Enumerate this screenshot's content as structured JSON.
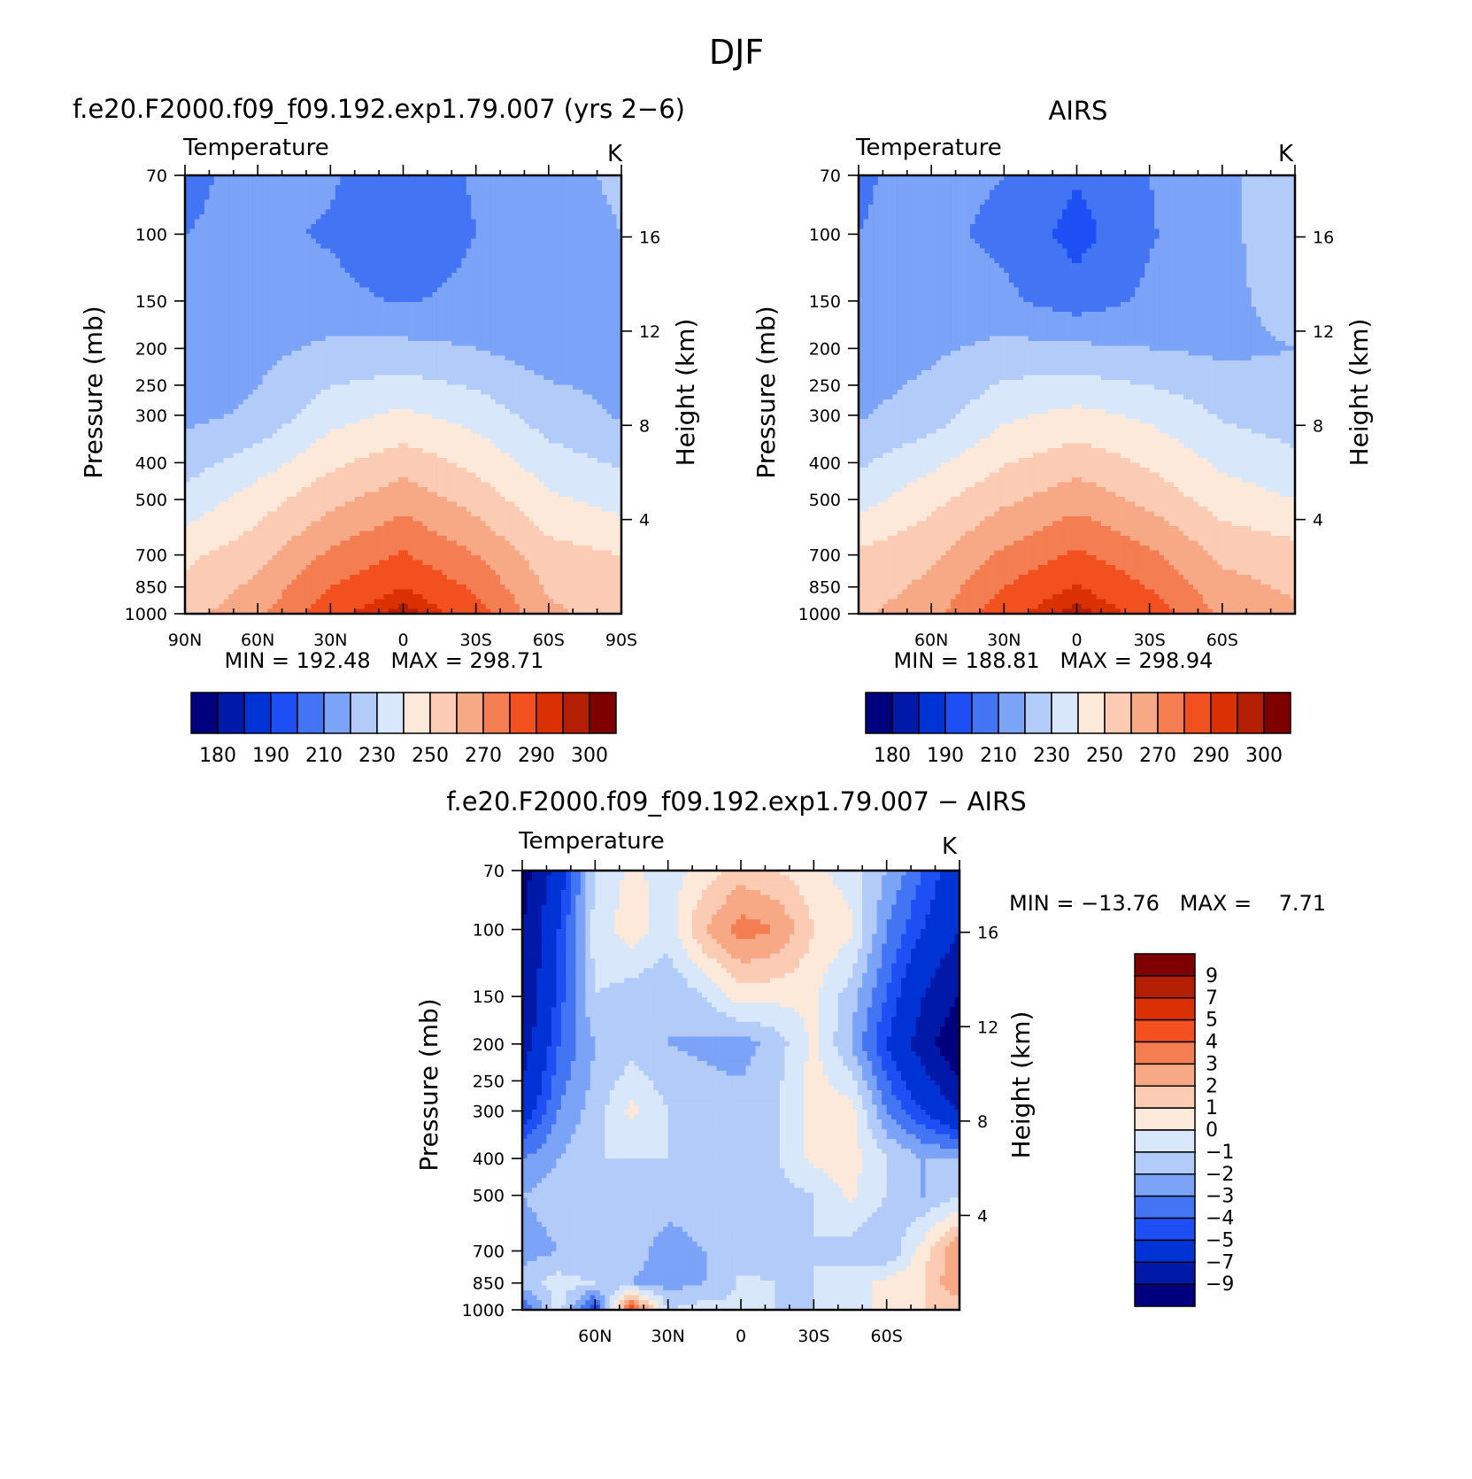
{
  "page": {
    "title": "DJF"
  },
  "palette": {
    "abs_colors": [
      "#00007f",
      "#0019a8",
      "#0033d6",
      "#1e4ff5",
      "#4274f4",
      "#7ba3f7",
      "#b3cbf8",
      "#d8e8fa",
      "#fde9da",
      "#fbcbb3",
      "#f7a884",
      "#f47d52",
      "#f2501f",
      "#db3004",
      "#b41e03",
      "#7f0000"
    ],
    "diff_colors": [
      "#00007f",
      "#0019a8",
      "#0033d6",
      "#1e4ff5",
      "#4274f4",
      "#7ba3f7",
      "#b3cbf8",
      "#d8e8fa",
      "#fde9da",
      "#fbcbb3",
      "#f7a884",
      "#f47d52",
      "#f2501f",
      "#db3004",
      "#b41e03",
      "#7f0000"
    ]
  },
  "panels": {
    "model": {
      "title": "f.e20.F2000.f09_f09.192.exp1.79.007 (yrs 2−6)",
      "left_string": "Temperature",
      "right_string": "K",
      "ylabel": "Pressure (mb)",
      "ylabel2": "Height (km)",
      "stats": "MIN = 192.48   MAX = 298.71"
    },
    "obs": {
      "title": "AIRS",
      "left_string": "Temperature",
      "right_string": "K",
      "ylabel": "Pressure (mb)",
      "ylabel2": "Height (km)",
      "stats": "MIN = 188.81   MAX = 298.94"
    },
    "diff": {
      "title": "f.e20.F2000.f09_f09.192.exp1.79.007 − AIRS",
      "left_string": "Temperature",
      "right_string": "K",
      "ylabel": "Pressure (mb)",
      "ylabel2": "Height (km)",
      "stats": "MIN = −13.76   MAX =    7.71"
    }
  },
  "chart_data": [
    {
      "type": "heatmap",
      "name": "model",
      "x": [
        -90,
        -60,
        -30,
        0,
        30,
        60,
        90
      ],
      "x_tick_labels": [
        "90N",
        "60N",
        "30N",
        "0",
        "30S",
        "60S",
        "90S"
      ],
      "y_pressure_ticks": [
        70,
        100,
        150,
        200,
        250,
        300,
        400,
        500,
        700,
        850,
        1000
      ],
      "y_height_ticks": [
        4,
        8,
        12,
        16
      ],
      "ylim": [
        1000,
        70
      ],
      "x_sample_lat": [
        -90,
        -60,
        -30,
        0,
        30,
        60,
        90
      ],
      "y_sample_p": [
        70,
        100,
        150,
        200,
        300,
        500,
        700,
        1000
      ],
      "values": [
        [
          208,
          213,
          211,
          205,
          211,
          218,
          221
        ],
        [
          210,
          212,
          209,
          202,
          210,
          217,
          220
        ],
        [
          213,
          215,
          213,
          209,
          213,
          217,
          220
        ],
        [
          213,
          217,
          222,
          223,
          220,
          215,
          217
        ],
        [
          217,
          222,
          236,
          242,
          236,
          225,
          219
        ],
        [
          233,
          245,
          257,
          266,
          256,
          242,
          236
        ],
        [
          248,
          256,
          272,
          281,
          270,
          254,
          250
        ],
        [
          256,
          268,
          287,
          298,
          285,
          262,
          256
        ]
      ],
      "levels": [
        180,
        185,
        190,
        200,
        210,
        220,
        230,
        240,
        250,
        260,
        270,
        280,
        290,
        295,
        300
      ],
      "colorbar_labels": [
        "180",
        "190",
        "210",
        "230",
        "250",
        "270",
        "290",
        "300"
      ],
      "min": 192.48,
      "max": 298.71
    },
    {
      "type": "heatmap",
      "name": "obs",
      "x": [
        -60,
        -30,
        0,
        30,
        60
      ],
      "x_tick_labels": [
        "60N",
        "30N",
        "0",
        "30S",
        "60S"
      ],
      "y_pressure_ticks": [
        70,
        100,
        150,
        200,
        250,
        300,
        400,
        500,
        700,
        850,
        1000
      ],
      "y_height_ticks": [
        4,
        8,
        12,
        16
      ],
      "ylim": [
        1000,
        70
      ],
      "x_sample_lat": [
        -90,
        -60,
        -30,
        0,
        30,
        60,
        90
      ],
      "y_sample_p": [
        70,
        100,
        150,
        200,
        300,
        500,
        700,
        1000
      ],
      "values": [
        [
          209,
          213,
          210,
          201,
          210,
          218,
          226
        ],
        [
          210,
          212,
          208,
          196,
          209,
          218,
          225
        ],
        [
          212,
          214,
          212,
          205,
          212,
          218,
          223
        ],
        [
          214,
          218,
          223,
          222,
          220,
          218,
          220
        ],
        [
          219,
          225,
          238,
          243,
          238,
          229,
          224
        ],
        [
          236,
          247,
          258,
          266,
          257,
          245,
          240
        ],
        [
          252,
          258,
          272,
          282,
          272,
          258,
          254
        ],
        [
          258,
          266,
          287,
          298,
          286,
          268,
          262
        ]
      ],
      "levels": [
        180,
        185,
        190,
        200,
        210,
        220,
        230,
        240,
        250,
        260,
        270,
        280,
        290,
        295,
        300
      ],
      "colorbar_labels": [
        "180",
        "190",
        "210",
        "230",
        "250",
        "270",
        "290",
        "300"
      ],
      "min": 188.81,
      "max": 298.94
    },
    {
      "type": "heatmap",
      "name": "diff",
      "x": [
        -60,
        -30,
        0,
        30,
        60
      ],
      "x_tick_labels": [
        "60N",
        "30N",
        "0",
        "30S",
        "60S"
      ],
      "y_pressure_ticks": [
        70,
        100,
        150,
        200,
        250,
        300,
        400,
        500,
        700,
        850,
        1000
      ],
      "y_height_ticks": [
        4,
        8,
        12,
        16
      ],
      "ylim": [
        1000,
        70
      ],
      "x_sample_lat": [
        -90,
        -75,
        -60,
        -45,
        -30,
        -15,
        0,
        15,
        30,
        45,
        60,
        75,
        90
      ],
      "y_sample_p": [
        70,
        100,
        150,
        200,
        300,
        400,
        500,
        700,
        850,
        1000
      ],
      "values": [
        [
          -10,
          -6,
          -1,
          0.3,
          -0.5,
          0.5,
          1.5,
          1,
          0.3,
          -0.5,
          -2,
          -4,
          -6
        ],
        [
          -9,
          -5,
          -0.5,
          0.5,
          -0.5,
          2,
          3.5,
          3,
          1,
          0.3,
          -3,
          -5,
          -7
        ],
        [
          -9,
          -4.5,
          -1,
          -1.5,
          -2,
          -1,
          0.5,
          0.3,
          0.2,
          -1.5,
          -4,
          -7,
          -9
        ],
        [
          -8,
          -4,
          -2,
          -1.5,
          -2,
          -2.2,
          -2.5,
          -1.5,
          0.3,
          -2,
          -5,
          -8,
          -11
        ],
        [
          -6,
          -3,
          -1.5,
          0.3,
          -1,
          -1.5,
          -1.5,
          -1,
          0.5,
          0.5,
          -3,
          -5,
          -7
        ],
        [
          -3,
          -2,
          -1,
          -1,
          -1,
          -1.5,
          -1,
          -1,
          0.3,
          0.5,
          -1,
          -2,
          -2
        ],
        [
          -2,
          -1.5,
          -1.5,
          -1.5,
          -1.5,
          -1.5,
          -1,
          -1.5,
          -1,
          0.2,
          -1,
          -2,
          -1
        ],
        [
          -2.5,
          -2,
          -2,
          -1.5,
          -2.5,
          -2,
          -1.5,
          -1.5,
          -1,
          -1.5,
          -2,
          0.5,
          3
        ],
        [
          -1.5,
          -0.5,
          -1,
          -2,
          -2.5,
          -2,
          -0.8,
          -1,
          -1,
          -0.5,
          0.3,
          1,
          3
        ],
        [
          -4,
          -0.5,
          -5,
          5,
          -1,
          -0.5,
          -1,
          -1,
          -1,
          -0.5,
          0.3,
          1,
          1
        ]
      ],
      "levels": [
        -9,
        -7,
        -5,
        -4,
        -3,
        -2,
        -1,
        0,
        1,
        2,
        3,
        4,
        5,
        7,
        9
      ],
      "colorbar_labels": [
        "9",
        "7",
        "5",
        "4",
        "3",
        "2",
        "1",
        "0",
        "−1",
        "−2",
        "−3",
        "−4",
        "−5",
        "−7",
        "−9"
      ],
      "min": -13.76,
      "max": 7.71
    }
  ]
}
